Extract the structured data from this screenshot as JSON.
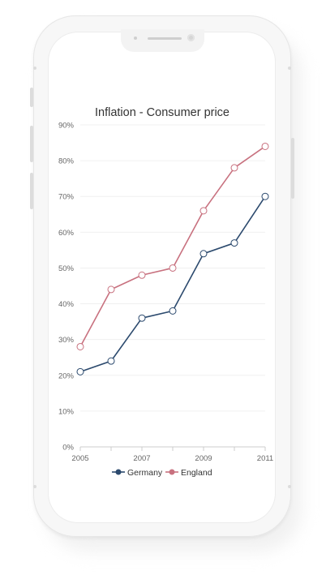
{
  "chart_data": {
    "type": "line",
    "title": "Inflation - Consumer price",
    "x": [
      2005,
      2006,
      2007,
      2008,
      2009,
      2010,
      2011
    ],
    "x_ticks": [
      "2005",
      "2007",
      "2009",
      "2011"
    ],
    "y_ticks": [
      "0%",
      "10%",
      "20%",
      "30%",
      "40%",
      "50%",
      "60%",
      "70%",
      "80%",
      "90%"
    ],
    "xlim": [
      2005,
      2011
    ],
    "ylim": [
      0,
      90
    ],
    "grid": "horizontal",
    "legend": "bottom",
    "series": [
      {
        "name": "Germany",
        "color": "#2c4a6e",
        "values": [
          21,
          24,
          36,
          38,
          54,
          57,
          70
        ]
      },
      {
        "name": "England",
        "color": "#c8717f",
        "values": [
          28,
          44,
          48,
          50,
          66,
          78,
          84
        ]
      }
    ]
  }
}
